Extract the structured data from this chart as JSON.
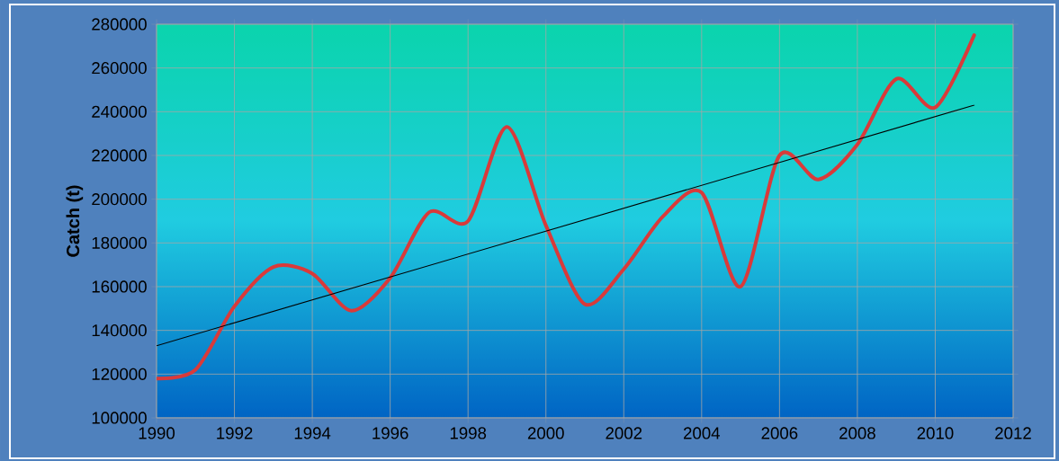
{
  "chart_data": {
    "type": "line",
    "ylabel": "Catch (t)",
    "x": [
      1990,
      1991,
      1992,
      1993,
      1994,
      1995,
      1996,
      1997,
      1998,
      1999,
      2000,
      2001,
      2002,
      2003,
      2004,
      2005,
      2006,
      2007,
      2008,
      2009,
      2010,
      2011
    ],
    "series": [
      {
        "color": "#d93a3a",
        "values": [
          118000,
          122000,
          151000,
          169000,
          166000,
          149000,
          164000,
          194000,
          190000,
          233000,
          188000,
          152000,
          168000,
          192000,
          203000,
          160000,
          220000,
          209000,
          225000,
          255000,
          242000,
          275000
        ]
      },
      {
        "type": "line",
        "color": "#000000",
        "x": [
          1990,
          2011
        ],
        "values": [
          133000,
          243000
        ]
      }
    ],
    "xlim": [
      1990,
      2012
    ],
    "ylim": [
      100000,
      280000
    ],
    "xticks": [
      1990,
      1992,
      1994,
      1996,
      1998,
      2000,
      2002,
      2004,
      2006,
      2008,
      2010,
      2012
    ],
    "yticks": [
      100000,
      120000,
      140000,
      160000,
      180000,
      200000,
      220000,
      240000,
      260000,
      280000
    ],
    "grid": true
  }
}
